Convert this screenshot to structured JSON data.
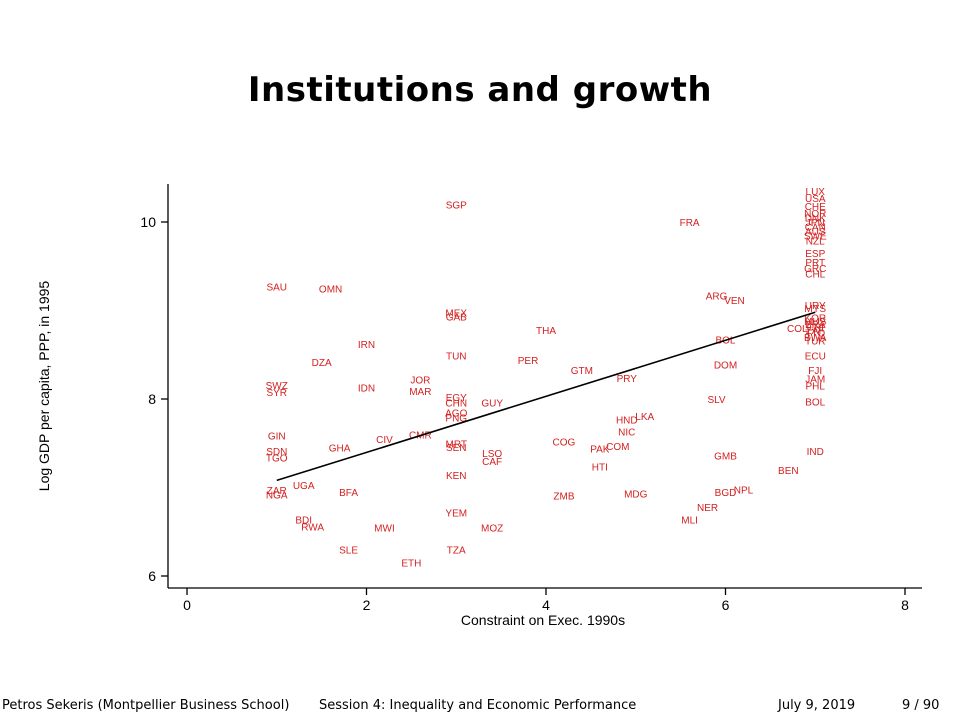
{
  "slide": {
    "title": "Institutions and growth"
  },
  "footer": {
    "author": "Petros Sekeris  (Montpellier Business School)",
    "session": "Session 4: Inequality and Economic Performance",
    "date": "July 9, 2019",
    "page": "9 / 90"
  },
  "colors": {
    "points": "#d42020",
    "axes": "#000000",
    "fit_line": "#000000",
    "background": "#ffffff"
  },
  "chart_data": {
    "type": "scatter",
    "title": "",
    "xlabel": "Constraint on Exec. 1990s",
    "ylabel": "Log GDP per capita, PPP, in 1995",
    "xlim": [
      0,
      8
    ],
    "ylim": [
      6,
      10.4
    ],
    "xticks": [
      0,
      2,
      4,
      6,
      8
    ],
    "yticks": [
      6,
      8,
      10
    ],
    "grid": false,
    "marker": "country-code-labels",
    "fit_line": {
      "x1": 1,
      "y1": 7.08,
      "x2": 7,
      "y2": 8.98
    },
    "points": [
      {
        "label": "SGP",
        "x": 3,
        "y": 10.2
      },
      {
        "label": "FRA",
        "x": 5.6,
        "y": 10.0
      },
      {
        "label": "LUX",
        "x": 7,
        "y": 10.35
      },
      {
        "label": "USA",
        "x": 7,
        "y": 10.27
      },
      {
        "label": "CHE",
        "x": 7,
        "y": 10.18
      },
      {
        "label": "NOR",
        "x": 7,
        "y": 10.1
      },
      {
        "label": "DNK",
        "x": 7,
        "y": 10.05
      },
      {
        "label": "JPN",
        "x": 7,
        "y": 10.0
      },
      {
        "label": "CAN",
        "x": 7,
        "y": 9.95
      },
      {
        "label": "AUS",
        "x": 7,
        "y": 9.9
      },
      {
        "label": "SWE",
        "x": 7,
        "y": 9.85
      },
      {
        "label": "NZL",
        "x": 7,
        "y": 9.79
      },
      {
        "label": "ESP",
        "x": 7,
        "y": 9.65
      },
      {
        "label": "PRT",
        "x": 7,
        "y": 9.55
      },
      {
        "label": "GRC",
        "x": 7,
        "y": 9.48
      },
      {
        "label": "CHL",
        "x": 7,
        "y": 9.42
      },
      {
        "label": "SAU",
        "x": 1,
        "y": 9.27
      },
      {
        "label": "OMN",
        "x": 1.6,
        "y": 9.25
      },
      {
        "label": "ARG",
        "x": 5.9,
        "y": 9.17
      },
      {
        "label": "VEN",
        "x": 6.1,
        "y": 9.12
      },
      {
        "label": "URY",
        "x": 7,
        "y": 9.06
      },
      {
        "label": "MYS",
        "x": 7,
        "y": 9.03
      },
      {
        "label": "MEX",
        "x": 3,
        "y": 8.98
      },
      {
        "label": "GAB",
        "x": 3,
        "y": 8.93
      },
      {
        "label": "KOR",
        "x": 7,
        "y": 8.92
      },
      {
        "label": "MUS",
        "x": 7,
        "y": 8.88
      },
      {
        "label": "BRA",
        "x": 7,
        "y": 8.85
      },
      {
        "label": "CRI",
        "x": 7,
        "y": 8.82
      },
      {
        "label": "ZAF",
        "x": 7,
        "y": 8.78
      },
      {
        "label": "COL",
        "x": 6.8,
        "y": 8.8
      },
      {
        "label": "THA",
        "x": 4,
        "y": 8.78
      },
      {
        "label": "TTO",
        "x": 7,
        "y": 8.75
      },
      {
        "label": "BWA",
        "x": 7,
        "y": 8.7
      },
      {
        "label": "TUR",
        "x": 7,
        "y": 8.66
      },
      {
        "label": "BOL",
        "x": 6,
        "y": 8.67
      },
      {
        "label": "IRN",
        "x": 2,
        "y": 8.62
      },
      {
        "label": "TUN",
        "x": 3,
        "y": 8.49
      },
      {
        "label": "ECU",
        "x": 7,
        "y": 8.49
      },
      {
        "label": "DZA",
        "x": 1.5,
        "y": 8.42
      },
      {
        "label": "PER",
        "x": 3.8,
        "y": 8.44
      },
      {
        "label": "DOM",
        "x": 6,
        "y": 8.39
      },
      {
        "label": "GTM",
        "x": 4.4,
        "y": 8.33
      },
      {
        "label": "FJI",
        "x": 7,
        "y": 8.33
      },
      {
        "label": "PRY",
        "x": 4.9,
        "y": 8.24
      },
      {
        "label": "JAM",
        "x": 7,
        "y": 8.23
      },
      {
        "label": "JOR",
        "x": 2.6,
        "y": 8.22
      },
      {
        "label": "SWZ",
        "x": 1,
        "y": 8.16
      },
      {
        "label": "PHL",
        "x": 7,
        "y": 8.15
      },
      {
        "label": "IDN",
        "x": 2,
        "y": 8.13
      },
      {
        "label": "MAR",
        "x": 2.6,
        "y": 8.09
      },
      {
        "label": "SYR",
        "x": 1,
        "y": 8.08
      },
      {
        "label": "EGY",
        "x": 3,
        "y": 8.02
      },
      {
        "label": "SLV",
        "x": 5.9,
        "y": 8.0
      },
      {
        "label": "BOL",
        "x": 7,
        "y": 7.97
      },
      {
        "label": "CHN",
        "x": 3,
        "y": 7.96
      },
      {
        "label": "GUY",
        "x": 3.4,
        "y": 7.96
      },
      {
        "label": "AGO",
        "x": 3,
        "y": 7.85
      },
      {
        "label": "LKA",
        "x": 5.1,
        "y": 7.81
      },
      {
        "label": "PNG",
        "x": 3,
        "y": 7.79
      },
      {
        "label": "HND",
        "x": 4.9,
        "y": 7.77
      },
      {
        "label": "NIC",
        "x": 4.9,
        "y": 7.63
      },
      {
        "label": "GIN",
        "x": 1,
        "y": 7.59
      },
      {
        "label": "CMR",
        "x": 2.6,
        "y": 7.6
      },
      {
        "label": "CIV",
        "x": 2.2,
        "y": 7.55
      },
      {
        "label": "COG",
        "x": 4.2,
        "y": 7.52
      },
      {
        "label": "MRT",
        "x": 3,
        "y": 7.5
      },
      {
        "label": "SEN",
        "x": 3,
        "y": 7.46
      },
      {
        "label": "GHA",
        "x": 1.7,
        "y": 7.45
      },
      {
        "label": "COM",
        "x": 4.8,
        "y": 7.47
      },
      {
        "label": "PAK",
        "x": 4.6,
        "y": 7.44
      },
      {
        "label": "SDN",
        "x": 1,
        "y": 7.41
      },
      {
        "label": "IND",
        "x": 7,
        "y": 7.41
      },
      {
        "label": "LSO",
        "x": 3.4,
        "y": 7.39
      },
      {
        "label": "GMB",
        "x": 6,
        "y": 7.36
      },
      {
        "label": "TGO",
        "x": 1,
        "y": 7.34
      },
      {
        "label": "CAF",
        "x": 3.4,
        "y": 7.3
      },
      {
        "label": "HTI",
        "x": 4.6,
        "y": 7.24
      },
      {
        "label": "BEN",
        "x": 6.7,
        "y": 7.2
      },
      {
        "label": "KEN",
        "x": 3,
        "y": 7.14
      },
      {
        "label": "UGA",
        "x": 1.3,
        "y": 7.03
      },
      {
        "label": "NPL",
        "x": 6.2,
        "y": 6.98
      },
      {
        "label": "BFA",
        "x": 1.8,
        "y": 6.95
      },
      {
        "label": "ZAR",
        "x": 1,
        "y": 6.97
      },
      {
        "label": "BGD",
        "x": 6,
        "y": 6.95
      },
      {
        "label": "MDG",
        "x": 5,
        "y": 6.93
      },
      {
        "label": "NGA",
        "x": 1,
        "y": 6.92
      },
      {
        "label": "ZMB",
        "x": 4.2,
        "y": 6.91
      },
      {
        "label": "NER",
        "x": 5.8,
        "y": 6.78
      },
      {
        "label": "YEM",
        "x": 3,
        "y": 6.72
      },
      {
        "label": "MLI",
        "x": 5.6,
        "y": 6.64
      },
      {
        "label": "BDI",
        "x": 1.3,
        "y": 6.64
      },
      {
        "label": "RWA",
        "x": 1.4,
        "y": 6.56
      },
      {
        "label": "MWI",
        "x": 2.2,
        "y": 6.55
      },
      {
        "label": "MOZ",
        "x": 3.4,
        "y": 6.55
      },
      {
        "label": "SLE",
        "x": 1.8,
        "y": 6.3
      },
      {
        "label": "TZA",
        "x": 3,
        "y": 6.3
      },
      {
        "label": "ETH",
        "x": 2.5,
        "y": 6.15
      }
    ]
  }
}
